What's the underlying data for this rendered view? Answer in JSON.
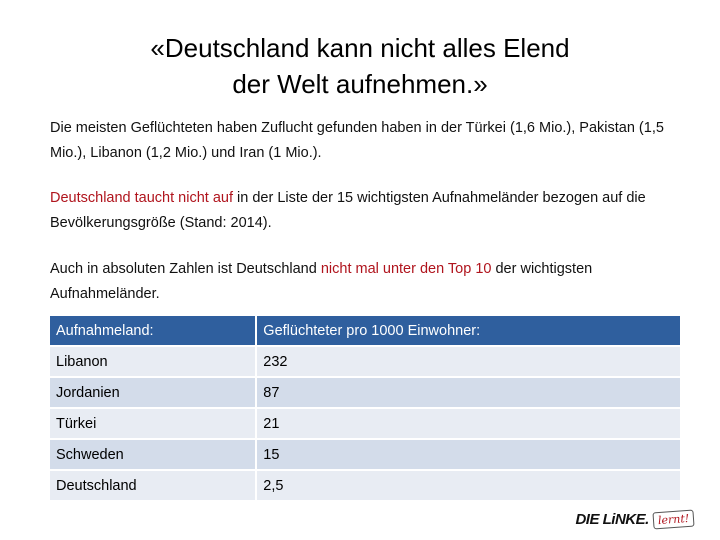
{
  "title": {
    "line1": "«Deutschland kann nicht alles Elend",
    "line2": "der Welt aufnehmen.»"
  },
  "para1": "Die meisten Geflüchteten haben Zuflucht gefunden haben in der Türkei (1,6 Mio.), Pakistan (1,5 Mio.), Libanon (1,2 Mio.) und Iran (1 Mio.).",
  "para2": {
    "highlight": "Deutschland taucht nicht auf",
    "rest": " in der Liste der 15 wichtigsten Aufnahmeländer bezogen auf die Bevölkerungsgröße (Stand: 2014)."
  },
  "para3": {
    "before": "Auch in absoluten Zahlen ist Deutschland ",
    "highlight": "nicht mal unter den Top 10",
    "after": " der wichtigsten Aufnahmeländer."
  },
  "table": {
    "headers": [
      "Aufnahmeland:",
      "Geflüchteter pro 1000 Einwohner:"
    ],
    "rows": [
      [
        "Libanon",
        "232"
      ],
      [
        "Jordanien",
        "87"
      ],
      [
        "Türkei",
        "21"
      ],
      [
        "Schweden",
        "15"
      ],
      [
        "Deutschland",
        "2,5"
      ]
    ]
  },
  "logo": {
    "main": "DIE LiNKE.",
    "badge": "lernt!"
  },
  "colors": {
    "accent_red": "#b0141d",
    "table_header": "#2f5f9e"
  }
}
